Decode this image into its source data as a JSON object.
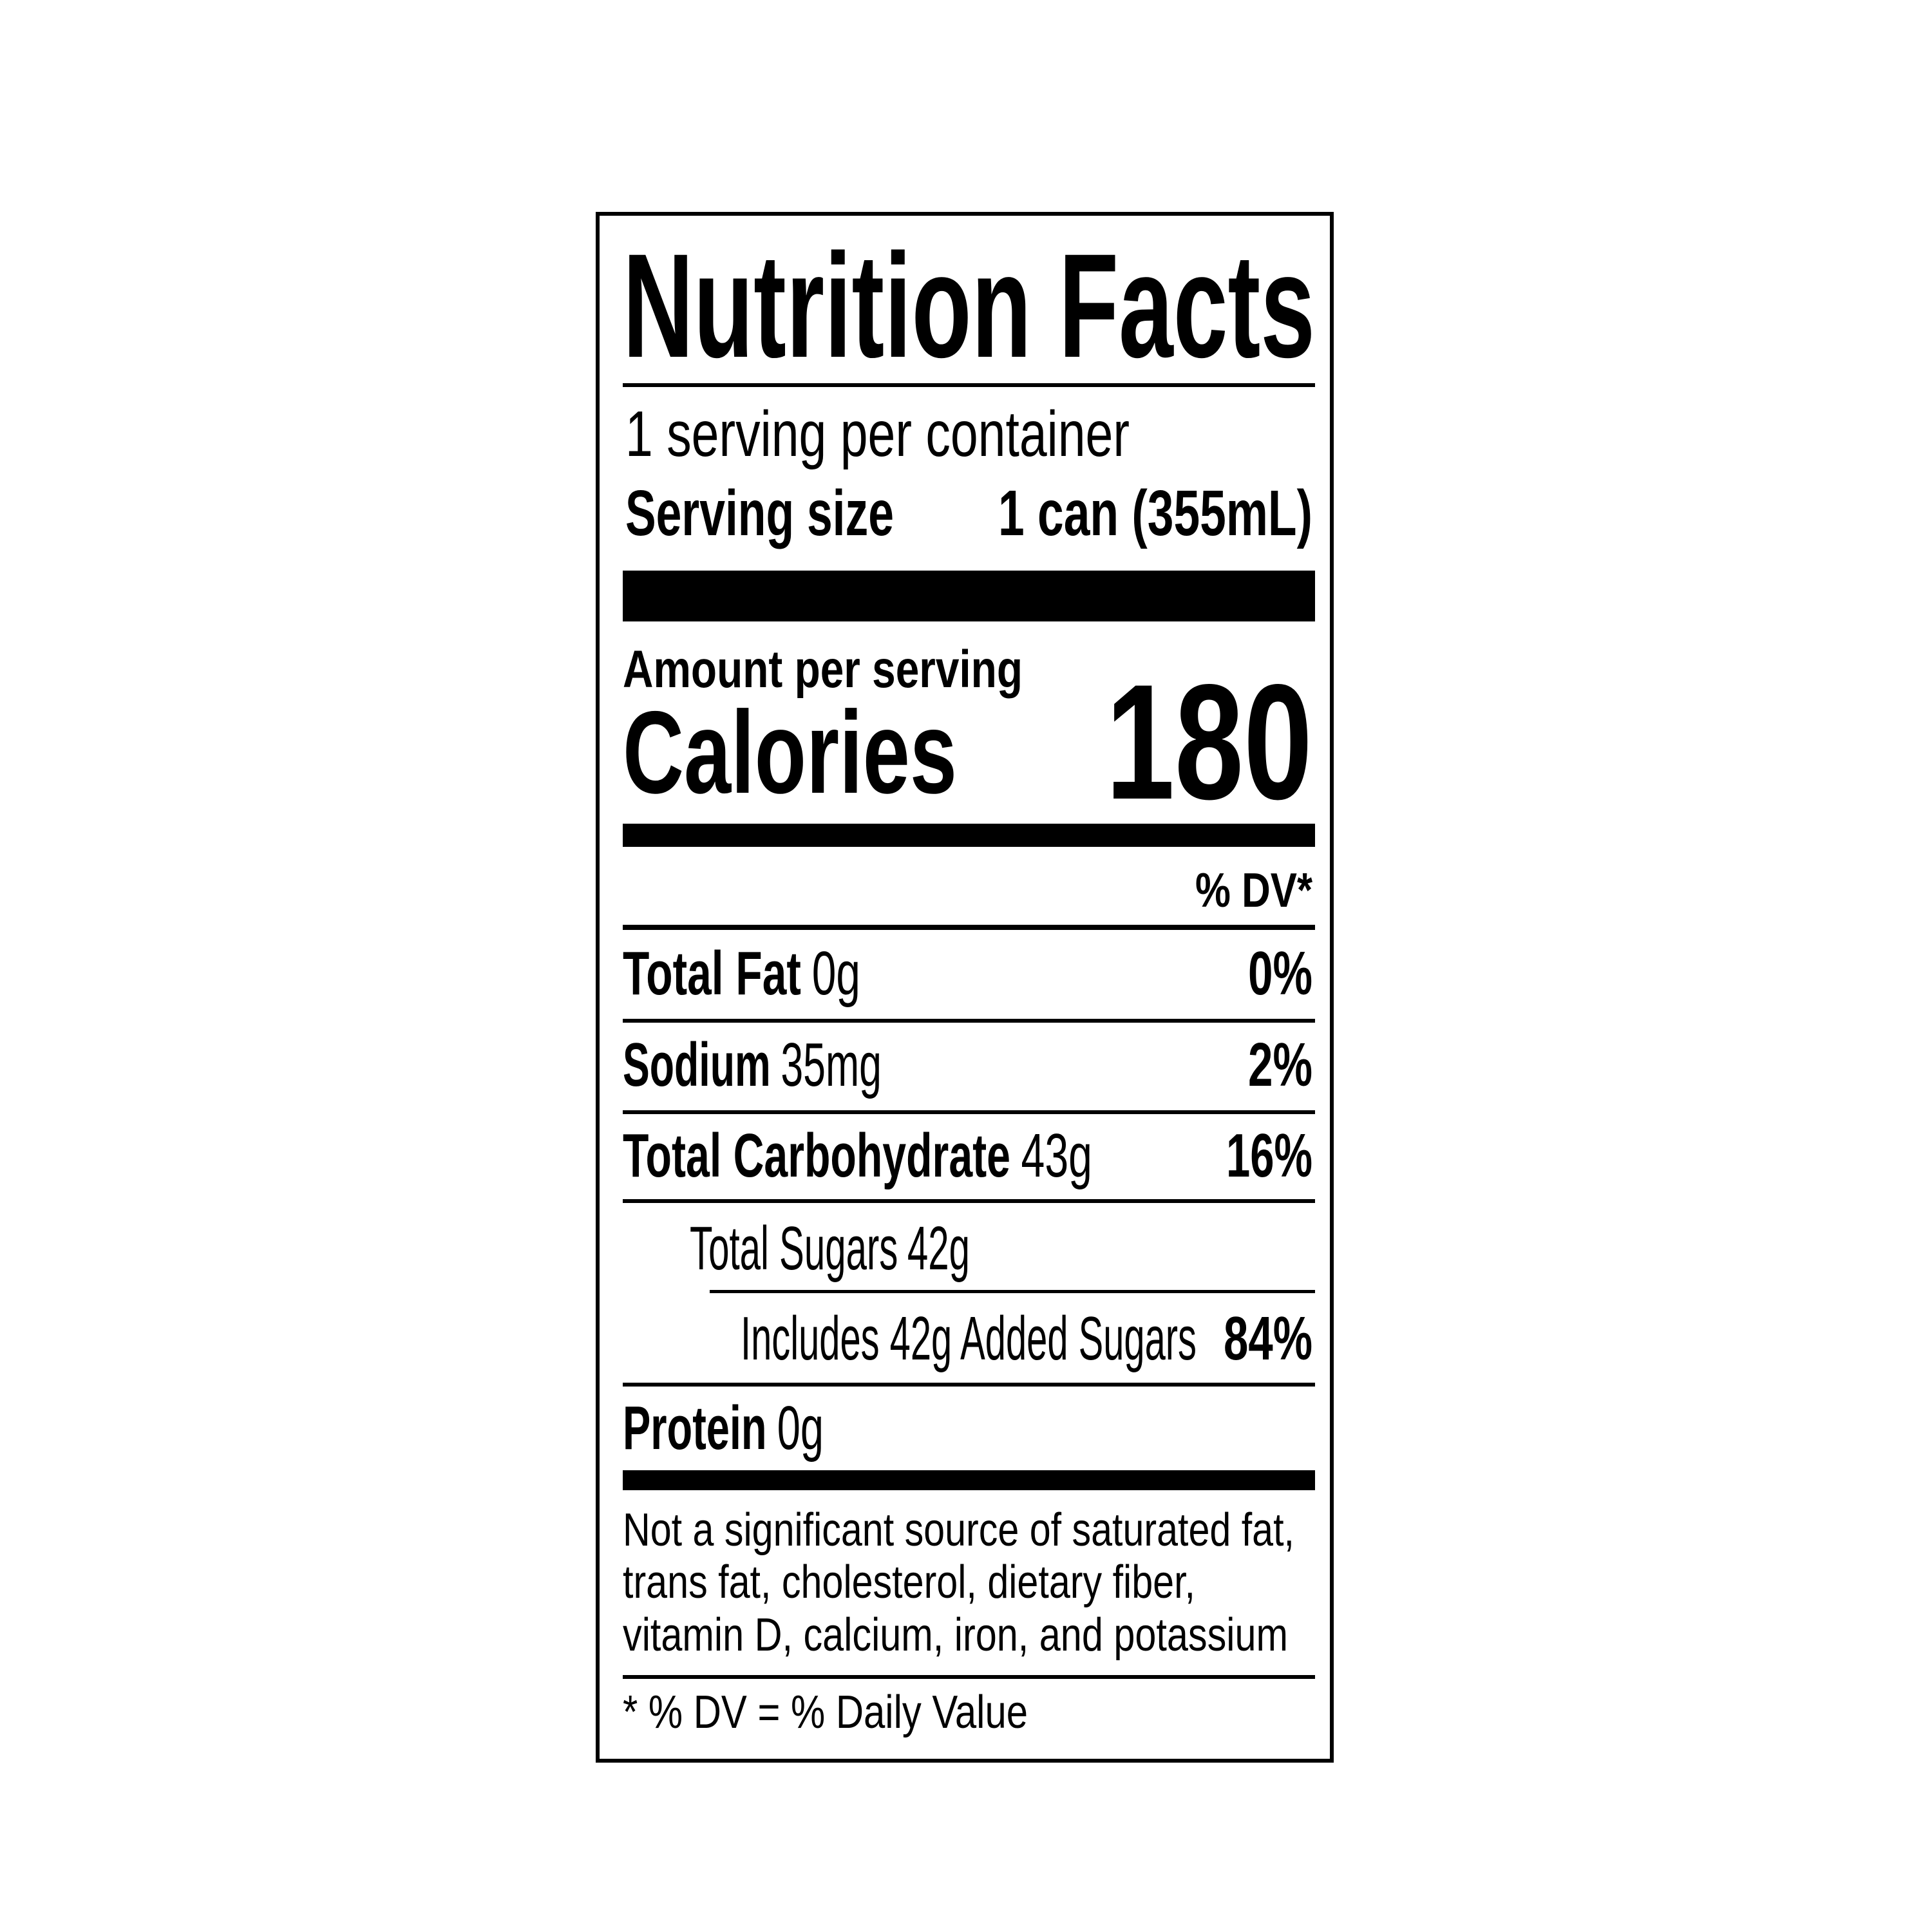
{
  "title": "Nutrition Facts",
  "servings_per_container": "1 serving per container",
  "serving_size": {
    "label": "Serving size",
    "value": "1 can (355mL)"
  },
  "amount_per_serving": "Amount per serving",
  "calories": {
    "label": "Calories",
    "value": "180"
  },
  "dv_header": "% DV*",
  "nutrients": [
    {
      "name": "Total Fat",
      "amount": "0g",
      "dv": "0%"
    },
    {
      "name": "Sodium",
      "amount": "35mg",
      "dv": "2%"
    },
    {
      "name": "Total Carbohydrate",
      "amount": "43g",
      "dv": "16%"
    },
    {
      "name": "Total Sugars",
      "amount": "42g"
    },
    {
      "name": "Includes 42g Added Sugars",
      "dv": "84%"
    },
    {
      "name": "Protein",
      "amount": "0g"
    }
  ],
  "footnote_nutrients": [
    "Not a significant source of saturated fat,",
    "trans fat, cholesterol, dietary fiber,",
    "vitamin D, calcium, iron, and potassium"
  ],
  "footnote_dv": "* % DV = % Daily Value"
}
